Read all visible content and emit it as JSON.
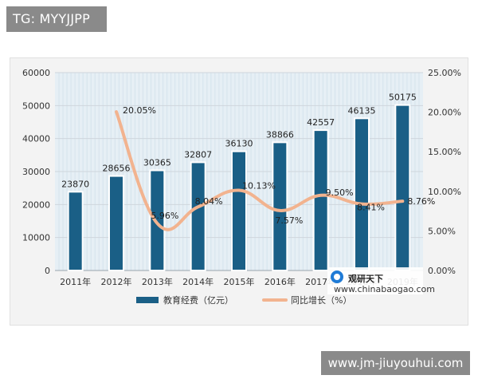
{
  "badge": {
    "text": "TG: MYYJJPP"
  },
  "footer": {
    "text": "www.jm-jiuyouhui.com"
  },
  "watermark": {
    "brand": "观研天下",
    "site": "www.chinabaogao.com"
  },
  "colors": {
    "bar": "#1a5f86",
    "bar_edge": "#ffffff",
    "line": "#f2b38f",
    "grid": "#cfd6dc",
    "axis_text": "#333333",
    "chart_bg": "#f3f3f3",
    "plot_bg": "#e6eff5"
  },
  "chart_data": {
    "type": "bar",
    "categories": [
      "2011年",
      "2012年",
      "2013年",
      "2014年",
      "2015年",
      "2016年",
      "2017年",
      "2018年",
      "2019年"
    ],
    "series": [
      {
        "name": "教育经费（亿元）",
        "type": "bar",
        "axis": "left",
        "values": [
          23870,
          28656,
          30365,
          32807,
          36130,
          38866,
          42557,
          46135,
          50175
        ]
      },
      {
        "name": "同比增长（%）",
        "type": "line",
        "axis": "right",
        "values": [
          null,
          20.05,
          5.96,
          8.04,
          10.13,
          7.57,
          9.5,
          8.41,
          8.76
        ]
      }
    ],
    "bar_labels": [
      "23870",
      "28656",
      "30365",
      "32807",
      "36130",
      "38866",
      "42557",
      "46135",
      "50175"
    ],
    "line_labels": [
      "",
      "20.05%",
      "5.96%",
      "8.04%",
      "10.13%",
      "7.57%",
      "9.50%",
      "8.41%",
      "8.76%"
    ],
    "y_left": {
      "ylim": [
        0,
        60000
      ],
      "ticks": [
        "0",
        "10000",
        "20000",
        "30000",
        "40000",
        "50000",
        "60000"
      ]
    },
    "y_right": {
      "ylim": [
        0,
        25
      ],
      "ticks": [
        "0.00%",
        "5.00%",
        "10.00%",
        "15.00%",
        "20.00%",
        "25.00%"
      ]
    },
    "grid": true,
    "legend_position": "bottom"
  }
}
